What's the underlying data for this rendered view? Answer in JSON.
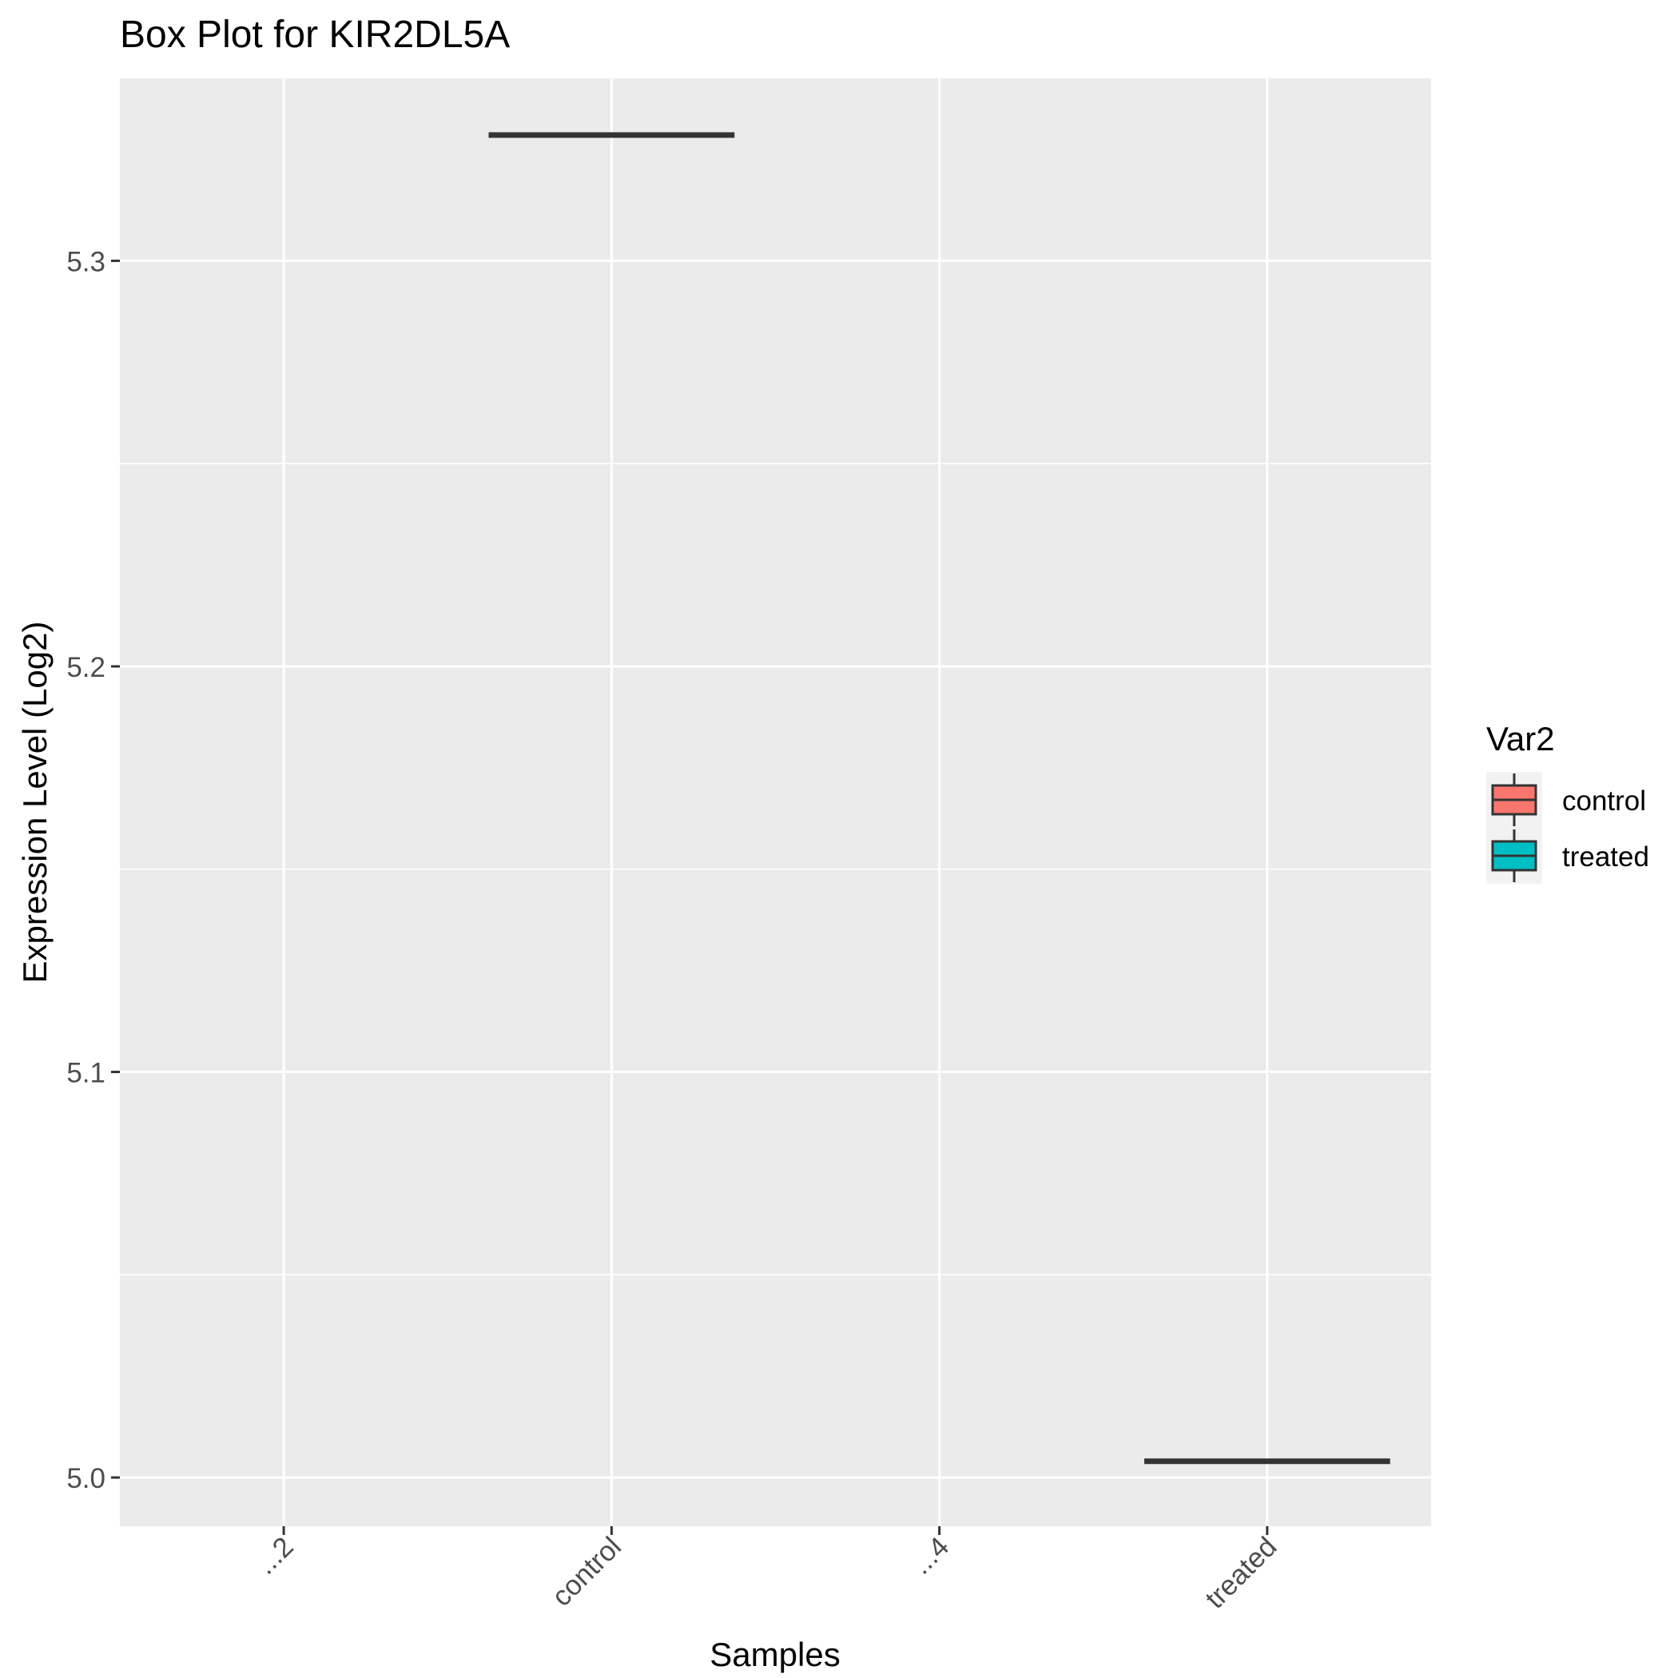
{
  "chart_data": {
    "type": "box",
    "title": "Box Plot for KIR2DL5A",
    "xlabel": "Samples",
    "ylabel": "Expression Level (Log2)",
    "categories": [
      "...2",
      "control",
      "...4",
      "treated"
    ],
    "ylim": [
      4.988,
      5.345
    ],
    "yticks": [
      5.0,
      5.1,
      5.2,
      5.3
    ],
    "ytick_labels": [
      "5.0",
      "5.1",
      "5.2",
      "5.3"
    ],
    "boxes": [
      {
        "category": "control",
        "group": "control",
        "median": 5.331
      },
      {
        "category": "treated",
        "group": "treated",
        "median": 5.004
      }
    ],
    "legend": {
      "title": "Var2",
      "placement": "right",
      "entries": [
        {
          "label": "control",
          "color": "#F8766D"
        },
        {
          "label": "treated",
          "color": "#00BFC4"
        }
      ]
    },
    "grid": true,
    "colors": {
      "panel": "#EBEBEB",
      "grid": "#FFFFFF",
      "median": "#333333"
    }
  }
}
